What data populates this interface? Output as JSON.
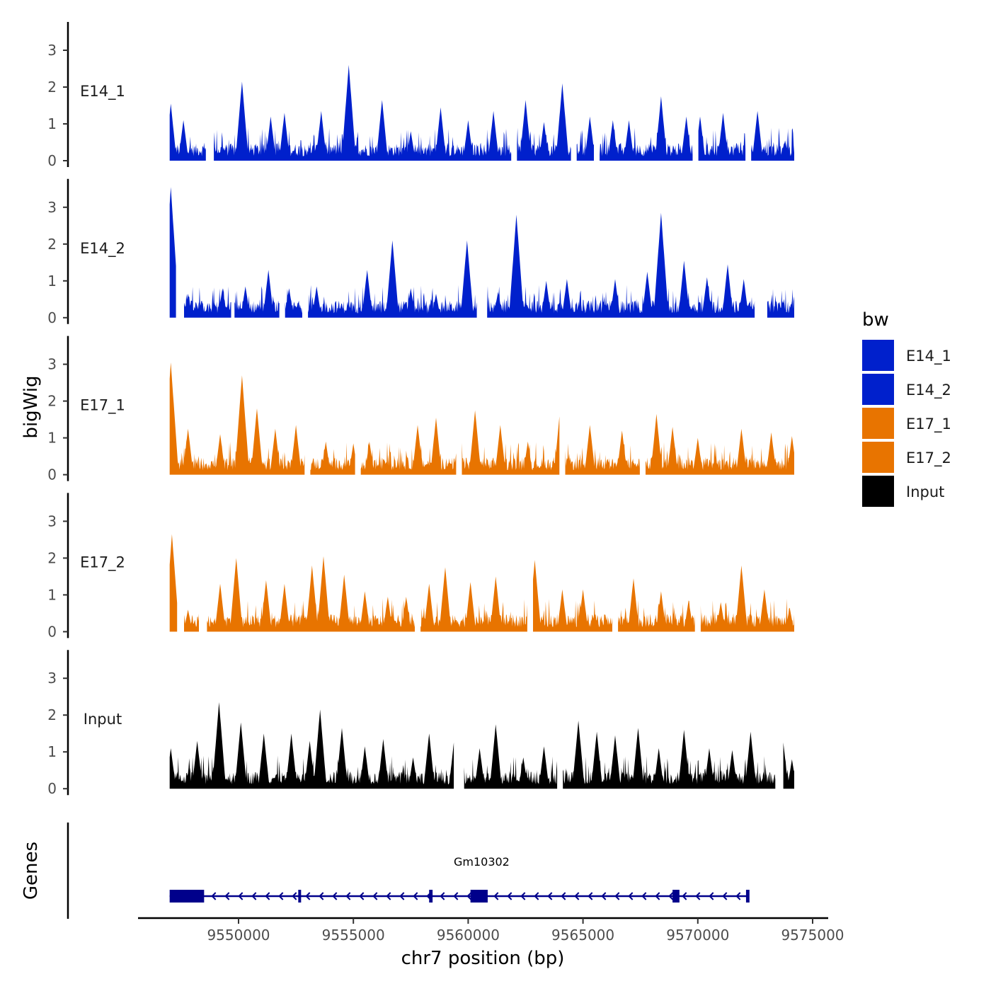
{
  "chart_data": {
    "type": "area",
    "chromosome": "chr7",
    "xlabel": "chr7 position (bp)",
    "ylabel": "bigWig",
    "xlim": [
      9546000,
      9575500
    ],
    "x_ticks": [
      9550000,
      9555000,
      9560000,
      9565000,
      9570000,
      9575000
    ],
    "x_tick_labels": [
      "9550000",
      "9555000",
      "9560000",
      "9565000",
      "9570000",
      "9575000"
    ],
    "ylim": [
      0,
      3.6
    ],
    "y_ticks": [
      0,
      1,
      2,
      3
    ],
    "y_tick_labels": [
      "0",
      "1",
      "2",
      "3"
    ],
    "track_range": [
      9547000,
      9574200
    ],
    "series": [
      {
        "name": "E14_1",
        "color": "#0020CC",
        "peaks": [
          [
            9547050,
            1.55
          ],
          [
            9547600,
            1.1
          ],
          [
            9550150,
            2.15
          ],
          [
            9551400,
            1.2
          ],
          [
            9552000,
            1.3
          ],
          [
            9553600,
            1.35
          ],
          [
            9554800,
            2.6
          ],
          [
            9556250,
            1.65
          ],
          [
            9557500,
            0.8
          ],
          [
            9558800,
            1.45
          ],
          [
            9560000,
            1.1
          ],
          [
            9561100,
            1.35
          ],
          [
            9562500,
            1.65
          ],
          [
            9563300,
            1.05
          ],
          [
            9564100,
            2.1
          ],
          [
            9565300,
            1.2
          ],
          [
            9566300,
            1.1
          ],
          [
            9567000,
            1.1
          ],
          [
            9568400,
            1.75
          ],
          [
            9569500,
            1.2
          ],
          [
            9570100,
            1.2
          ],
          [
            9571100,
            1.3
          ],
          [
            9572600,
            1.35
          ],
          [
            9573800,
            0.55
          ]
        ],
        "gaps": [
          [
            9548600,
            9548900
          ],
          [
            9561900,
            9562100
          ],
          [
            9564500,
            9564700
          ],
          [
            9565500,
            9565700
          ],
          [
            9569800,
            9570000
          ],
          [
            9572100,
            9572300
          ]
        ]
      },
      {
        "name": "E14_2",
        "color": "#0020CC",
        "peaks": [
          [
            9547050,
            3.55
          ],
          [
            9547800,
            0.65
          ],
          [
            9549300,
            0.8
          ],
          [
            9550300,
            0.85
          ],
          [
            9551300,
            1.3
          ],
          [
            9552200,
            0.8
          ],
          [
            9553400,
            0.85
          ],
          [
            9555600,
            1.3
          ],
          [
            9556700,
            2.1
          ],
          [
            9557500,
            0.8
          ],
          [
            9558600,
            0.65
          ],
          [
            9559950,
            2.1
          ],
          [
            9561300,
            0.7
          ],
          [
            9562100,
            2.8
          ],
          [
            9563400,
            1.0
          ],
          [
            9564300,
            1.05
          ],
          [
            9566400,
            1.05
          ],
          [
            9567800,
            1.25
          ],
          [
            9568400,
            2.85
          ],
          [
            9569400,
            1.55
          ],
          [
            9570400,
            1.1
          ],
          [
            9571300,
            1.45
          ],
          [
            9572000,
            1.05
          ],
          [
            9573700,
            0.45
          ]
        ],
        "gaps": [
          [
            9547300,
            9547600
          ],
          [
            9549700,
            9549800
          ],
          [
            9551800,
            9552000
          ],
          [
            9552800,
            9553000
          ],
          [
            9560400,
            9560800
          ],
          [
            9572500,
            9573000
          ]
        ]
      },
      {
        "name": "E17_1",
        "color": "#E87400",
        "peaks": [
          [
            9547050,
            3.05
          ],
          [
            9547800,
            1.25
          ],
          [
            9549200,
            1.1
          ],
          [
            9550150,
            2.7
          ],
          [
            9550800,
            1.8
          ],
          [
            9551600,
            1.25
          ],
          [
            9552500,
            1.35
          ],
          [
            9553800,
            0.9
          ],
          [
            9555000,
            0.85
          ],
          [
            9555700,
            0.9
          ],
          [
            9557800,
            1.35
          ],
          [
            9558600,
            1.55
          ],
          [
            9559600,
            1.25
          ],
          [
            9560300,
            1.75
          ],
          [
            9561400,
            1.35
          ],
          [
            9562600,
            0.9
          ],
          [
            9564000,
            1.75
          ],
          [
            9565300,
            1.35
          ],
          [
            9566700,
            1.2
          ],
          [
            9568200,
            1.65
          ],
          [
            9568900,
            1.3
          ],
          [
            9570000,
            1.0
          ],
          [
            9571900,
            1.25
          ],
          [
            9573200,
            1.15
          ],
          [
            9574100,
            1.05
          ]
        ],
        "gaps": [
          [
            9552900,
            9553100
          ],
          [
            9555100,
            9555300
          ],
          [
            9559500,
            9559700
          ],
          [
            9564000,
            9564200
          ],
          [
            9567500,
            9567700
          ]
        ]
      },
      {
        "name": "E17_2",
        "color": "#E87400",
        "peaks": [
          [
            9547100,
            2.65
          ],
          [
            9547800,
            0.6
          ],
          [
            9549200,
            1.3
          ],
          [
            9549900,
            2.0
          ],
          [
            9551200,
            1.4
          ],
          [
            9552000,
            1.3
          ],
          [
            9553200,
            1.8
          ],
          [
            9553700,
            2.05
          ],
          [
            9554600,
            1.55
          ],
          [
            9555500,
            1.1
          ],
          [
            9556500,
            0.95
          ],
          [
            9557300,
            0.95
          ],
          [
            9558300,
            1.3
          ],
          [
            9559000,
            1.75
          ],
          [
            9560100,
            1.35
          ],
          [
            9561200,
            1.5
          ],
          [
            9562900,
            1.95
          ],
          [
            9564100,
            1.15
          ],
          [
            9565000,
            1.15
          ],
          [
            9566400,
            0.85
          ],
          [
            9567200,
            1.45
          ],
          [
            9568400,
            1.1
          ],
          [
            9569600,
            0.85
          ],
          [
            9571000,
            0.8
          ],
          [
            9571900,
            1.8
          ],
          [
            9572900,
            1.15
          ],
          [
            9574000,
            0.65
          ]
        ],
        "gaps": [
          [
            9547350,
            9547600
          ],
          [
            9548300,
            9548600
          ],
          [
            9557700,
            9557900
          ],
          [
            9562600,
            9562800
          ],
          [
            9566300,
            9566500
          ],
          [
            9569900,
            9570100
          ]
        ]
      },
      {
        "name": "Input",
        "color": "#000000",
        "peaks": [
          [
            9547050,
            1.1
          ],
          [
            9548200,
            1.3
          ],
          [
            9549150,
            2.35
          ],
          [
            9550100,
            1.8
          ],
          [
            9551100,
            1.5
          ],
          [
            9552300,
            1.5
          ],
          [
            9553100,
            1.3
          ],
          [
            9553550,
            2.15
          ],
          [
            9554500,
            1.65
          ],
          [
            9555500,
            1.15
          ],
          [
            9556300,
            1.35
          ],
          [
            9557600,
            0.85
          ],
          [
            9558300,
            1.5
          ],
          [
            9559400,
            1.4
          ],
          [
            9560500,
            1.1
          ],
          [
            9561200,
            1.75
          ],
          [
            9562400,
            0.85
          ],
          [
            9563300,
            1.15
          ],
          [
            9564800,
            1.85
          ],
          [
            9565600,
            1.55
          ],
          [
            9566400,
            1.45
          ],
          [
            9567400,
            1.65
          ],
          [
            9568300,
            1.1
          ],
          [
            9569400,
            1.6
          ],
          [
            9570500,
            1.1
          ],
          [
            9571500,
            1.05
          ],
          [
            9572300,
            1.55
          ],
          [
            9573700,
            1.4
          ],
          [
            9574100,
            0.8
          ]
        ],
        "gaps": [
          [
            9559400,
            9559800
          ],
          [
            9563900,
            9564100
          ],
          [
            9573400,
            9573700
          ]
        ]
      }
    ],
    "genes": [
      {
        "name": "Gm10302",
        "strand": "-",
        "start": 9547000,
        "end": 9572200,
        "exons": [
          [
            9547000,
            9548500
          ],
          [
            9552600,
            9552650
          ],
          [
            9558300,
            9558450
          ],
          [
            9560100,
            9560850
          ],
          [
            9568900,
            9569200
          ],
          [
            9572100,
            9572250
          ]
        ]
      }
    ],
    "legend": {
      "title": "bw",
      "position": "right",
      "entries": [
        {
          "label": "E14_1",
          "color": "#0020CC"
        },
        {
          "label": "E14_2",
          "color": "#0020CC"
        },
        {
          "label": "E17_1",
          "color": "#E87400"
        },
        {
          "label": "E17_2",
          "color": "#E87400"
        },
        {
          "label": "Input",
          "color": "#000000"
        }
      ]
    },
    "panel_labels": {
      "genes": "Genes"
    }
  }
}
